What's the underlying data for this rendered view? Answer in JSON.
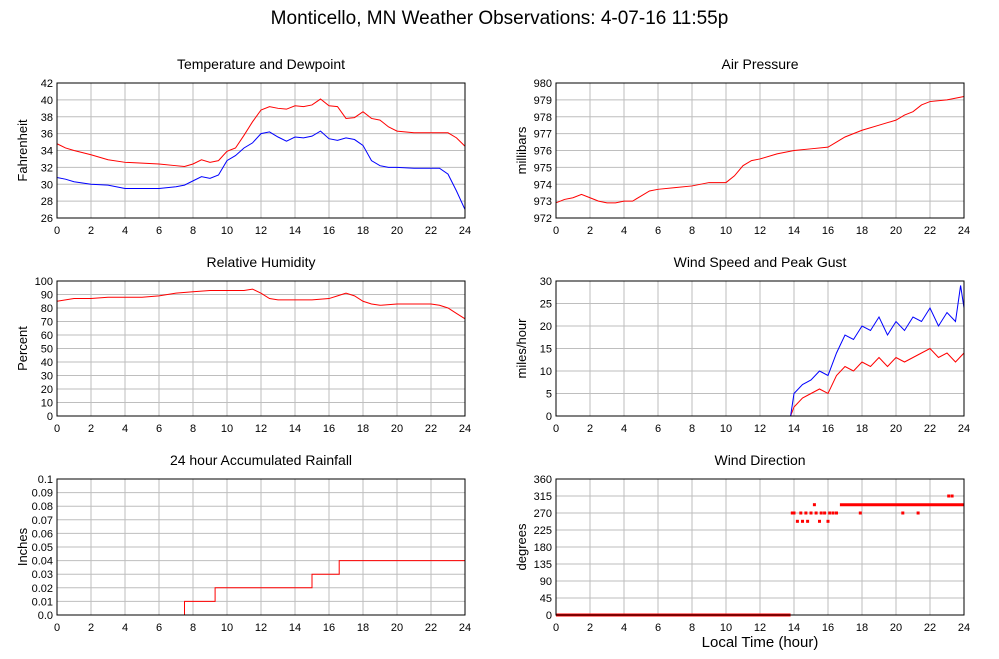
{
  "page_title": "Monticello, MN Weather Observations: 4-07-16 11:55p",
  "xlabel": "Local Time (hour)",
  "colors": {
    "red": "#ff0000",
    "blue": "#0000ff",
    "grid": "#bebebe",
    "frame": "#000000"
  },
  "chart_data": [
    {
      "type": "line",
      "title": "Temperature and Dewpoint",
      "ylabel": "Fahrenheit",
      "xlim": [
        0,
        24
      ],
      "ylim": [
        26,
        42
      ],
      "xticks": [
        0,
        2,
        4,
        6,
        8,
        10,
        12,
        14,
        16,
        18,
        20,
        22,
        24
      ],
      "yticks": [
        26,
        28,
        30,
        32,
        34,
        36,
        38,
        40,
        42
      ],
      "grid": true,
      "series": [
        {
          "color": "red",
          "x": [
            0,
            0.5,
            1,
            2,
            3,
            4,
            5,
            6,
            7,
            7.5,
            8,
            8.5,
            9,
            9.5,
            10,
            10.5,
            11,
            11.5,
            12,
            12.5,
            13,
            13.5,
            14,
            14.5,
            15,
            15.5,
            16,
            16.5,
            17,
            17.5,
            18,
            18.5,
            19,
            19.5,
            20,
            21,
            22,
            23,
            23.5,
            24
          ],
          "y": [
            34.8,
            34.3,
            34,
            33.5,
            32.9,
            32.6,
            32.5,
            32.4,
            32.2,
            32.1,
            32.4,
            32.9,
            32.6,
            32.8,
            33.9,
            34.3,
            35.8,
            37.4,
            38.8,
            39.2,
            39.0,
            38.9,
            39.3,
            39.2,
            39.4,
            40.1,
            39.3,
            39.2,
            37.8,
            37.9,
            38.6,
            37.8,
            37.6,
            36.8,
            36.3,
            36.1,
            36.1,
            36.1,
            35.5,
            34.5
          ]
        },
        {
          "color": "blue",
          "x": [
            0,
            0.5,
            1,
            2,
            3,
            4,
            5,
            6,
            7,
            7.5,
            8,
            8.5,
            9,
            9.5,
            10,
            10.5,
            11,
            11.5,
            12,
            12.5,
            13,
            13.5,
            14,
            14.5,
            15,
            15.5,
            16,
            16.5,
            17,
            17.5,
            18,
            18.5,
            19,
            19.5,
            20,
            21,
            22,
            22.5,
            23,
            23.5,
            24
          ],
          "y": [
            30.8,
            30.6,
            30.3,
            30.0,
            29.9,
            29.5,
            29.5,
            29.5,
            29.7,
            29.9,
            30.4,
            30.9,
            30.7,
            31.1,
            32.8,
            33.4,
            34.3,
            34.9,
            36.0,
            36.2,
            35.6,
            35.1,
            35.6,
            35.5,
            35.7,
            36.3,
            35.4,
            35.2,
            35.5,
            35.3,
            34.6,
            32.8,
            32.2,
            32.0,
            32.0,
            31.9,
            31.9,
            31.9,
            31.2,
            29.2,
            27.0
          ]
        }
      ]
    },
    {
      "type": "line",
      "title": "Air Pressure",
      "ylabel": "millibars",
      "xlim": [
        0,
        24
      ],
      "ylim": [
        972,
        980
      ],
      "xticks": [
        0,
        2,
        4,
        6,
        8,
        10,
        12,
        14,
        16,
        18,
        20,
        22,
        24
      ],
      "yticks": [
        972,
        973,
        974,
        975,
        976,
        977,
        978,
        979,
        980
      ],
      "grid": true,
      "series": [
        {
          "color": "red",
          "x": [
            0,
            0.5,
            1,
            1.5,
            2,
            2.5,
            3,
            3.5,
            4,
            4.5,
            5,
            5.5,
            6,
            7,
            8,
            9,
            10,
            10.5,
            11,
            11.5,
            12,
            13,
            14,
            15,
            16,
            16.5,
            17,
            18,
            19,
            20,
            20.5,
            21,
            21.5,
            22,
            23,
            24
          ],
          "y": [
            972.9,
            973.1,
            973.2,
            973.4,
            973.2,
            973.0,
            972.9,
            972.9,
            973.0,
            973.0,
            973.3,
            973.6,
            973.7,
            973.8,
            973.9,
            974.1,
            974.1,
            974.5,
            975.1,
            975.4,
            975.5,
            975.8,
            976.0,
            976.1,
            976.2,
            976.5,
            976.8,
            977.2,
            977.5,
            977.8,
            978.1,
            978.3,
            978.7,
            978.9,
            979.0,
            979.2
          ]
        }
      ]
    },
    {
      "type": "line",
      "title": "Relative Humidity",
      "ylabel": "Percent",
      "xlim": [
        0,
        24
      ],
      "ylim": [
        0,
        100
      ],
      "xticks": [
        0,
        2,
        4,
        6,
        8,
        10,
        12,
        14,
        16,
        18,
        20,
        22,
        24
      ],
      "yticks": [
        0,
        10,
        20,
        30,
        40,
        50,
        60,
        70,
        80,
        90,
        100
      ],
      "grid": true,
      "series": [
        {
          "color": "red",
          "x": [
            0,
            1,
            2,
            3,
            4,
            5,
            6,
            7,
            8,
            9,
            10,
            11,
            11.5,
            12,
            12.5,
            13,
            13.5,
            14,
            15,
            16,
            16.5,
            17,
            17.5,
            18,
            18.5,
            19,
            20,
            21,
            22,
            22.5,
            23,
            23.5,
            24
          ],
          "y": [
            85,
            87,
            87,
            88,
            88,
            88,
            89,
            91,
            92,
            93,
            93,
            93,
            94,
            91,
            87,
            86,
            86,
            86,
            86,
            87,
            89,
            91,
            89,
            85,
            83,
            82,
            83,
            83,
            83,
            82,
            80,
            76,
            72
          ]
        }
      ]
    },
    {
      "type": "line",
      "title": "Wind Speed and Peak Gust",
      "ylabel": "miles/hour",
      "xlim": [
        0,
        24
      ],
      "ylim": [
        0,
        30
      ],
      "xticks": [
        0,
        2,
        4,
        6,
        8,
        10,
        12,
        14,
        16,
        18,
        20,
        22,
        24
      ],
      "yticks": [
        0,
        5,
        10,
        15,
        20,
        25,
        30
      ],
      "grid": true,
      "series": [
        {
          "color": "red",
          "x": [
            0,
            13.8,
            14,
            14.5,
            15,
            15.5,
            16,
            16.5,
            17,
            17.5,
            18,
            18.5,
            19,
            19.5,
            20,
            20.5,
            21,
            21.5,
            22,
            22.5,
            23,
            23.5,
            24
          ],
          "y": [
            0,
            0,
            2,
            4,
            5,
            6,
            5,
            9,
            11,
            10,
            12,
            11,
            13,
            11,
            13,
            12,
            13,
            14,
            15,
            13,
            14,
            12,
            14
          ]
        },
        {
          "color": "blue",
          "x": [
            0,
            13.8,
            14,
            14.5,
            15,
            15.5,
            16,
            16.5,
            17,
            17.5,
            18,
            18.5,
            19,
            19.5,
            20,
            20.5,
            21,
            21.5,
            22,
            22.5,
            23,
            23.5,
            23.8,
            24
          ],
          "y": [
            0,
            0,
            5,
            7,
            8,
            10,
            9,
            14,
            18,
            17,
            20,
            19,
            22,
            18,
            21,
            19,
            22,
            21,
            24,
            20,
            23,
            21,
            29,
            24
          ]
        }
      ]
    },
    {
      "type": "line",
      "title": "24 hour Accumulated Rainfall",
      "ylabel": "Inches",
      "xlim": [
        0,
        24
      ],
      "ylim": [
        0,
        0.1
      ],
      "xticks": [
        0,
        2,
        4,
        6,
        8,
        10,
        12,
        14,
        16,
        18,
        20,
        22,
        24
      ],
      "yticks": [
        0.0,
        0.01,
        0.02,
        0.03,
        0.04,
        0.05,
        0.06,
        0.07,
        0.08,
        0.09,
        0.1
      ],
      "ytick_labels": [
        "0.0",
        "0.01",
        "0.02",
        "0.03",
        "0.04",
        "0.05",
        "0.06",
        "0.07",
        "0.08",
        "0.09",
        "0.1"
      ],
      "grid": true,
      "series": [
        {
          "color": "red",
          "x": [
            0,
            7.5,
            7.5,
            9.3,
            9.3,
            15.0,
            15.0,
            16.6,
            16.6,
            24
          ],
          "y": [
            0,
            0,
            0.01,
            0.01,
            0.02,
            0.02,
            0.03,
            0.03,
            0.04,
            0.04
          ]
        }
      ]
    },
    {
      "type": "scatter",
      "title": "Wind Direction",
      "ylabel": "degrees",
      "xlim": [
        0,
        24
      ],
      "ylim": [
        0,
        360
      ],
      "xticks": [
        0,
        2,
        4,
        6,
        8,
        10,
        12,
        14,
        16,
        18,
        20,
        22,
        24
      ],
      "yticks": [
        0,
        45,
        90,
        135,
        180,
        225,
        270,
        315,
        360
      ],
      "grid": true,
      "series": [
        {
          "color": "red",
          "x": [
            13.9,
            14.0,
            14.2,
            14.4,
            14.5,
            14.7,
            14.8,
            15.0,
            15.2,
            15.3,
            15.5,
            15.6,
            15.8,
            16.0,
            16.1,
            16.3,
            16.5,
            17.9,
            20.4,
            21.3,
            23.1,
            23.3
          ],
          "y": [
            270,
            270,
            248,
            270,
            248,
            270,
            248,
            270,
            292,
            270,
            248,
            270,
            270,
            248,
            270,
            270,
            270,
            270,
            270,
            270,
            315,
            315
          ]
        },
        {
          "color": "red",
          "style": "dense",
          "x": [
            0,
            13.8
          ],
          "y": [
            0,
            0
          ]
        },
        {
          "color": "red",
          "style": "dense",
          "x": [
            16.7,
            24
          ],
          "y": [
            292,
            292
          ]
        }
      ]
    }
  ]
}
